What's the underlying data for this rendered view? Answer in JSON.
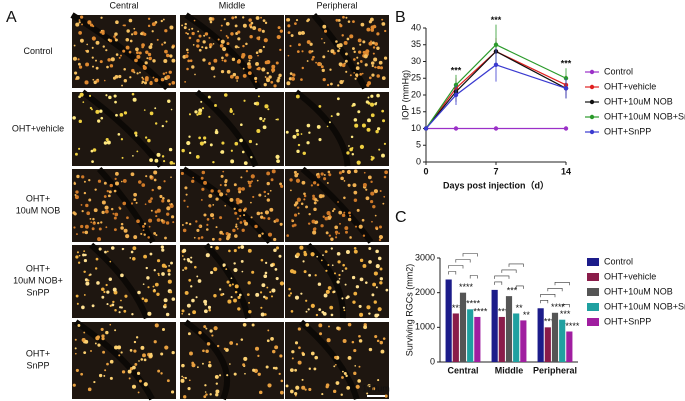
{
  "panel_a": {
    "label": "A",
    "columns": [
      "Central",
      "Middle",
      "Peripheral"
    ],
    "rows": [
      "Control",
      "OHT+vehicle",
      "OHT+\n10uM NOB",
      "OHT+\n10uM NOB+\nSnPP",
      "OHT+\nSnPP"
    ],
    "scale_bar": "100um"
  },
  "chart_data": [
    {
      "panel": "B",
      "type": "line",
      "ylabel": "IOP (mmHg)",
      "xlabel": "Days post injection（d）",
      "x": [
        0,
        3,
        7,
        14
      ],
      "xlim": [
        0,
        14
      ],
      "xticks": [
        0,
        7,
        14
      ],
      "ylim": [
        0,
        40
      ],
      "yticks": [
        0,
        5,
        10,
        15,
        20,
        25,
        30,
        35,
        40
      ],
      "series": [
        {
          "name": "Control",
          "color": "#9b30c8",
          "values": [
            10,
            10,
            10,
            10
          ],
          "errors": [
            0,
            0,
            0,
            0
          ]
        },
        {
          "name": "OHT+vehicle",
          "color": "#e02020",
          "values": [
            10,
            22,
            33,
            23
          ],
          "errors": [
            0,
            3,
            4,
            3
          ]
        },
        {
          "name": "OHT+10uM NOB",
          "color": "#111111",
          "values": [
            10,
            21,
            33,
            22
          ],
          "errors": [
            0,
            3,
            3,
            3
          ]
        },
        {
          "name": "OHT+10uM NOB+SnPP",
          "color": "#2a9a2a",
          "values": [
            10,
            23,
            35,
            25
          ],
          "errors": [
            0,
            3,
            6,
            3
          ]
        },
        {
          "name": "OHT+SnPP",
          "color": "#3a3ad0",
          "values": [
            10,
            20,
            29,
            22
          ],
          "errors": [
            0,
            3,
            5,
            3
          ]
        }
      ],
      "annotations": [
        {
          "x": 3,
          "text": "***"
        },
        {
          "x": 7,
          "text": "***"
        },
        {
          "x": 14,
          "text": "***"
        }
      ]
    },
    {
      "panel": "C",
      "type": "bar",
      "ylabel": "Surviving RGCs (mm2)",
      "categories": [
        "Central",
        "Middle",
        "Peripheral"
      ],
      "ylim": [
        0,
        3000
      ],
      "yticks": [
        0,
        1000,
        2000,
        3000
      ],
      "series": [
        {
          "name": "Control",
          "color": "#1c1c8a",
          "values": [
            2380,
            2080,
            1550
          ]
        },
        {
          "name": "OHT+vehicle",
          "color": "#8a1c4a",
          "values": [
            1400,
            1300,
            1000
          ],
          "labels": [
            "****",
            "****",
            "****"
          ]
        },
        {
          "name": "OHT+10uM NOB",
          "color": "#555555",
          "values": [
            2000,
            1900,
            1420
          ],
          "labels": [
            "****",
            "***",
            "****"
          ]
        },
        {
          "name": "OHT+10uM NOB+SnPP",
          "color": "#1fa0a0",
          "values": [
            1520,
            1400,
            1220
          ],
          "labels": [
            "****",
            "**",
            "***"
          ]
        },
        {
          "name": "OHT+SnPP",
          "color": "#a01ea0",
          "values": [
            1300,
            1200,
            880
          ],
          "labels": [
            "****",
            "**",
            "****"
          ]
        }
      ]
    }
  ]
}
